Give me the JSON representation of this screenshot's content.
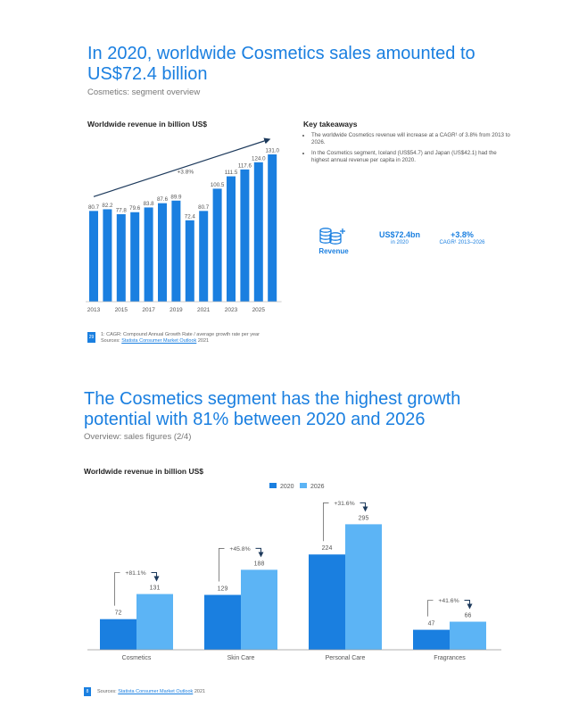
{
  "page1": {
    "title": "In 2020, worldwide Cosmetics sales amounted to US$72.4 billion",
    "subtitle": "Cosmetics: segment overview",
    "chart_heading": "Worldwide revenue in billion US$",
    "key_takeaways": {
      "heading": "Key takeaways",
      "bullets": [
        "The worldwide Cosmetics revenue will increase at a CAGR¹ of 3.8% from 2013 to 2026.",
        "In the Cosmetics segment, Iceland (US$54.7) and Japan (US$42.1) had the highest annual revenue per capita in 2020."
      ]
    },
    "kpi": {
      "icon": "coins-stack-icon",
      "label": "Revenue",
      "value1": "US$72.4bn",
      "sub1": "in 2020",
      "value2": "+3.8%",
      "sub2": "CAGR¹ 2013–2026"
    },
    "page_number": "29",
    "footnote_line1": "1: CAGR: Compound Annual Growth Rate / average growth rate per year",
    "footnote_sources_label": "Sources: ",
    "footnote_source_link": "Statista Consumer Market Outlook",
    "footnote_year": " 2021"
  },
  "page2": {
    "title": "The Cosmetics segment has the highest growth potential with 81% between 2020 and 2026",
    "subtitle": "Overview: sales figures (2/4)",
    "chart_heading": "Worldwide revenue in billion US$",
    "page_number": "8",
    "footnote_sources_label": "Sources: ",
    "footnote_source_link": "Statista Consumer Market Outlook",
    "footnote_year": " 2021"
  },
  "colors": {
    "accent": "#1a7fe0",
    "bar_dark": "#1a7fe0",
    "bar_light": "#5cb4f5"
  },
  "chart_data": [
    {
      "type": "bar",
      "title": "Worldwide revenue in billion US$",
      "categories": [
        "2013",
        "2014",
        "2015",
        "2016",
        "2017",
        "2018",
        "2019",
        "2020",
        "2021",
        "2022",
        "2023",
        "2024",
        "2025",
        "2026"
      ],
      "values": [
        80.7,
        82.2,
        77.8,
        79.6,
        83.8,
        87.6,
        89.9,
        72.4,
        80.7,
        100.5,
        111.5,
        117.6,
        124.0,
        131.0
      ],
      "value_labels": [
        "80.7",
        "82.2",
        "77.8",
        "79.6",
        "83.8",
        "87.6",
        "89.9",
        "72.4",
        "80.7",
        "100.5",
        "111.5",
        "117.6",
        "124.0",
        "131.0"
      ],
      "x_tick_labels": [
        "2013",
        "2015",
        "2017",
        "2019",
        "2021",
        "2023",
        "2025"
      ],
      "annotation": "+3.8%",
      "ylim": [
        0,
        140
      ]
    },
    {
      "type": "bar",
      "title": "Worldwide revenue in billion US$",
      "categories": [
        "Cosmetics",
        "Skin Care",
        "Personal Care",
        "Fragrances"
      ],
      "series": [
        {
          "name": "2020",
          "values": [
            72,
            129,
            224,
            47
          ]
        },
        {
          "name": "2026",
          "values": [
            131,
            188,
            295,
            66
          ]
        }
      ],
      "growth_labels": [
        "+81.1%",
        "+45.8%",
        "+31.6%",
        "+41.6%"
      ],
      "legend_position": "top-center",
      "ylim": [
        0,
        300
      ]
    }
  ]
}
